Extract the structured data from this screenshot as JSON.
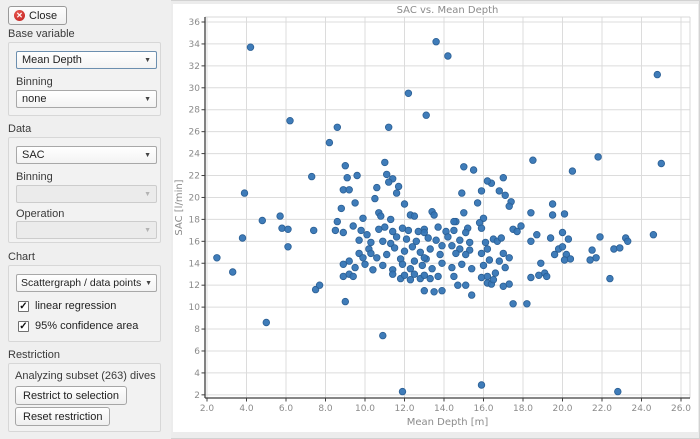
{
  "sidebar": {
    "close_label": "Close",
    "base_variable": {
      "label": "Base variable",
      "value": "Mean Depth",
      "binning_label": "Binning",
      "binning_value": "none"
    },
    "data_section": {
      "label": "Data",
      "value": "SAC",
      "binning_label": "Binning",
      "binning_value": "",
      "operation_label": "Operation",
      "operation_value": ""
    },
    "chart": {
      "label": "Chart",
      "type_value": "Scattergraph / data points",
      "checkboxes": [
        {
          "label": "linear regression",
          "checked": true
        },
        {
          "label": "95% confidence area",
          "checked": true
        }
      ]
    },
    "restriction": {
      "label": "Restriction",
      "status": "Analyzing subset (263) dives",
      "restrict_button": "Restrict to selection",
      "reset_button": "Reset restriction"
    }
  },
  "chart_data": {
    "type": "scatter",
    "title": "SAC vs. Mean Depth",
    "xlabel": "Mean Depth [m]",
    "ylabel": "SAC [l/min]",
    "xlim": [
      2,
      26
    ],
    "ylim": [
      2,
      36
    ],
    "xticks": [
      "2.0",
      "4.0",
      "6.0",
      "8.0",
      "10.0",
      "12.0",
      "14.0",
      "16.0",
      "18.0",
      "20.0",
      "22.0",
      "24.0",
      "26.0"
    ],
    "yticks": [
      2,
      4,
      6,
      8,
      10,
      12,
      14,
      16,
      18,
      20,
      22,
      24,
      26,
      28,
      30,
      32,
      34,
      36
    ],
    "grid": true,
    "colors": {
      "point": "#3575b5",
      "point_edge": "#2b5f94",
      "grid": "#dcdcdc",
      "spine": "#3f3f3f",
      "light_border": "#d8d8d8",
      "text": "#8b8b8b"
    },
    "points": [
      [
        4.2,
        33.7
      ],
      [
        13.6,
        34.2
      ],
      [
        14.2,
        32.9
      ],
      [
        24.8,
        31.2
      ],
      [
        12.2,
        29.5
      ],
      [
        13.1,
        27.5
      ],
      [
        6.2,
        27.0
      ],
      [
        8.6,
        26.4
      ],
      [
        11.2,
        26.4
      ],
      [
        8.2,
        25.0
      ],
      [
        21.8,
        23.7
      ],
      [
        25.0,
        23.1
      ],
      [
        18.5,
        23.4
      ],
      [
        20.5,
        22.4
      ],
      [
        11.0,
        23.2
      ],
      [
        9.0,
        22.9
      ],
      [
        7.3,
        21.9
      ],
      [
        9.1,
        21.8
      ],
      [
        9.6,
        22.0
      ],
      [
        11.1,
        22.1
      ],
      [
        11.4,
        21.7
      ],
      [
        11.2,
        21.4
      ],
      [
        11.7,
        21.0
      ],
      [
        15.0,
        22.8
      ],
      [
        15.5,
        22.5
      ],
      [
        16.4,
        21.3
      ],
      [
        16.2,
        21.5
      ],
      [
        17.0,
        21.8
      ],
      [
        3.9,
        20.4
      ],
      [
        8.9,
        20.7
      ],
      [
        9.2,
        20.7
      ],
      [
        10.6,
        20.9
      ],
      [
        10.5,
        19.9
      ],
      [
        9.5,
        19.5
      ],
      [
        8.8,
        19.0
      ],
      [
        11.6,
        20.4
      ],
      [
        12.0,
        19.4
      ],
      [
        14.9,
        20.4
      ],
      [
        15.9,
        20.6
      ],
      [
        16.8,
        20.6
      ],
      [
        17.1,
        20.2
      ],
      [
        15.7,
        19.5
      ],
      [
        17.4,
        19.6
      ],
      [
        17.3,
        19.2
      ],
      [
        19.5,
        19.4
      ],
      [
        13.4,
        18.7
      ],
      [
        13.5,
        18.4
      ],
      [
        4.8,
        17.9
      ],
      [
        5.7,
        18.3
      ],
      [
        10.7,
        18.6
      ],
      [
        10.8,
        18.3
      ],
      [
        12.3,
        18.4
      ],
      [
        12.5,
        18.3
      ],
      [
        15.0,
        18.6
      ],
      [
        18.4,
        18.6
      ],
      [
        19.5,
        18.4
      ],
      [
        20.1,
        18.5
      ],
      [
        14.6,
        17.8
      ],
      [
        9.9,
        18.1
      ],
      [
        11.3,
        18.0
      ],
      [
        16.0,
        18.1
      ],
      [
        5.8,
        17.2
      ],
      [
        6.1,
        17.1
      ],
      [
        7.4,
        17.0
      ],
      [
        8.6,
        17.8
      ],
      [
        8.5,
        17.0
      ],
      [
        8.9,
        16.8
      ],
      [
        10.1,
        16.6
      ],
      [
        12.7,
        16.9
      ],
      [
        13.0,
        17.1
      ],
      [
        14.5,
        17.8
      ],
      [
        15.2,
        17.2
      ],
      [
        14.5,
        17.0
      ],
      [
        15.1,
        16.8
      ],
      [
        15.8,
        17.7
      ],
      [
        15.9,
        17.2
      ],
      [
        17.5,
        17.1
      ],
      [
        17.7,
        16.9
      ],
      [
        17.9,
        17.4
      ],
      [
        18.7,
        16.6
      ],
      [
        10.7,
        17.1
      ],
      [
        11.0,
        17.3
      ],
      [
        11.4,
        16.9
      ],
      [
        11.9,
        17.2
      ],
      [
        12.2,
        17.0
      ],
      [
        9.4,
        17.4
      ],
      [
        9.8,
        17.0
      ],
      [
        13.7,
        17.3
      ],
      [
        14.1,
        16.9
      ],
      [
        13.0,
        16.8
      ],
      [
        3.8,
        16.3
      ],
      [
        16.5,
        16.2
      ],
      [
        16.7,
        16.0
      ],
      [
        16.9,
        16.3
      ],
      [
        16.1,
        15.9
      ],
      [
        15.3,
        15.9
      ],
      [
        18.4,
        16.0
      ],
      [
        19.4,
        16.3
      ],
      [
        20.3,
        16.2
      ],
      [
        20.0,
        16.8
      ],
      [
        21.9,
        16.4
      ],
      [
        23.2,
        16.3
      ],
      [
        23.3,
        16.0
      ],
      [
        24.6,
        16.6
      ],
      [
        9.7,
        16.1
      ],
      [
        10.3,
        15.9
      ],
      [
        11.6,
        16.4
      ],
      [
        12.1,
        16.2
      ],
      [
        12.6,
        16.0
      ],
      [
        13.2,
        16.3
      ],
      [
        13.6,
        16.1
      ],
      [
        14.2,
        16.4
      ],
      [
        10.9,
        16.0
      ],
      [
        11.3,
        15.8
      ],
      [
        14.8,
        16.1
      ],
      [
        6.1,
        15.5
      ],
      [
        10.2,
        15.3
      ],
      [
        10.3,
        14.9
      ],
      [
        9.7,
        14.9
      ],
      [
        10.6,
        14.5
      ],
      [
        15.3,
        15.2
      ],
      [
        14.8,
        15.3
      ],
      [
        14.6,
        14.9
      ],
      [
        14.4,
        15.6
      ],
      [
        15.1,
        14.8
      ],
      [
        15.9,
        14.9
      ],
      [
        16.2,
        15.3
      ],
      [
        17.0,
        14.9
      ],
      [
        16.8,
        14.2
      ],
      [
        16.3,
        14.3
      ],
      [
        17.3,
        14.5
      ],
      [
        19.8,
        15.3
      ],
      [
        20.0,
        15.5
      ],
      [
        19.6,
        14.8
      ],
      [
        20.2,
        14.8
      ],
      [
        20.4,
        14.4
      ],
      [
        20.1,
        14.3
      ],
      [
        21.5,
        15.2
      ],
      [
        22.6,
        15.3
      ],
      [
        22.9,
        15.4
      ],
      [
        21.7,
        14.5
      ],
      [
        21.4,
        14.3
      ],
      [
        11.5,
        15.4
      ],
      [
        12.0,
        15.1
      ],
      [
        12.4,
        15.5
      ],
      [
        12.8,
        15.0
      ],
      [
        13.3,
        15.3
      ],
      [
        13.8,
        14.8
      ],
      [
        11.1,
        14.8
      ],
      [
        11.8,
        14.4
      ],
      [
        12.5,
        14.2
      ],
      [
        13.1,
        14.4
      ],
      [
        13.9,
        15.6
      ],
      [
        2.5,
        14.5
      ],
      [
        9.2,
        14.2
      ],
      [
        8.9,
        13.9
      ],
      [
        9.5,
        13.6
      ],
      [
        10.0,
        13.9
      ],
      [
        10.4,
        13.4
      ],
      [
        10.9,
        13.8
      ],
      [
        11.4,
        13.4
      ],
      [
        11.9,
        13.9
      ],
      [
        12.3,
        13.5
      ],
      [
        12.9,
        13.8
      ],
      [
        13.4,
        13.5
      ],
      [
        13.9,
        14.0
      ],
      [
        14.4,
        13.6
      ],
      [
        14.9,
        13.9
      ],
      [
        15.4,
        13.5
      ],
      [
        16.0,
        13.8
      ],
      [
        17.1,
        13.6
      ],
      [
        9.9,
        14.5
      ],
      [
        13.0,
        14.5
      ],
      [
        18.9,
        14.0
      ],
      [
        3.3,
        13.2
      ],
      [
        16.6,
        13.1
      ],
      [
        19.1,
        13.1
      ],
      [
        8.9,
        12.8
      ],
      [
        9.2,
        13.0
      ],
      [
        9.4,
        12.8
      ],
      [
        11.4,
        13.0
      ],
      [
        11.8,
        12.6
      ],
      [
        12.0,
        12.9
      ],
      [
        12.3,
        12.5
      ],
      [
        12.5,
        13.0
      ],
      [
        12.8,
        12.6
      ],
      [
        13.0,
        12.9
      ],
      [
        13.3,
        12.6
      ],
      [
        13.7,
        12.8
      ],
      [
        14.5,
        12.8
      ],
      [
        15.9,
        12.7
      ],
      [
        16.2,
        12.2
      ],
      [
        16.2,
        12.8
      ],
      [
        16.4,
        12.1
      ],
      [
        16.5,
        12.5
      ],
      [
        17.3,
        12.1
      ],
      [
        18.4,
        12.7
      ],
      [
        18.8,
        12.9
      ],
      [
        19.2,
        12.8
      ],
      [
        22.4,
        12.6
      ],
      [
        14.7,
        12.0
      ],
      [
        15.1,
        12.0
      ],
      [
        15.4,
        11.1
      ],
      [
        7.5,
        11.6
      ],
      [
        7.7,
        12.0
      ],
      [
        13.0,
        11.5
      ],
      [
        13.5,
        11.4
      ],
      [
        13.9,
        11.5
      ],
      [
        17.0,
        11.9
      ],
      [
        9.0,
        10.5
      ],
      [
        17.5,
        10.3
      ],
      [
        18.2,
        10.3
      ],
      [
        10.9,
        7.4
      ],
      [
        5.0,
        8.6
      ],
      [
        11.9,
        2.3
      ],
      [
        15.9,
        2.9
      ],
      [
        22.8,
        2.3
      ]
    ]
  }
}
